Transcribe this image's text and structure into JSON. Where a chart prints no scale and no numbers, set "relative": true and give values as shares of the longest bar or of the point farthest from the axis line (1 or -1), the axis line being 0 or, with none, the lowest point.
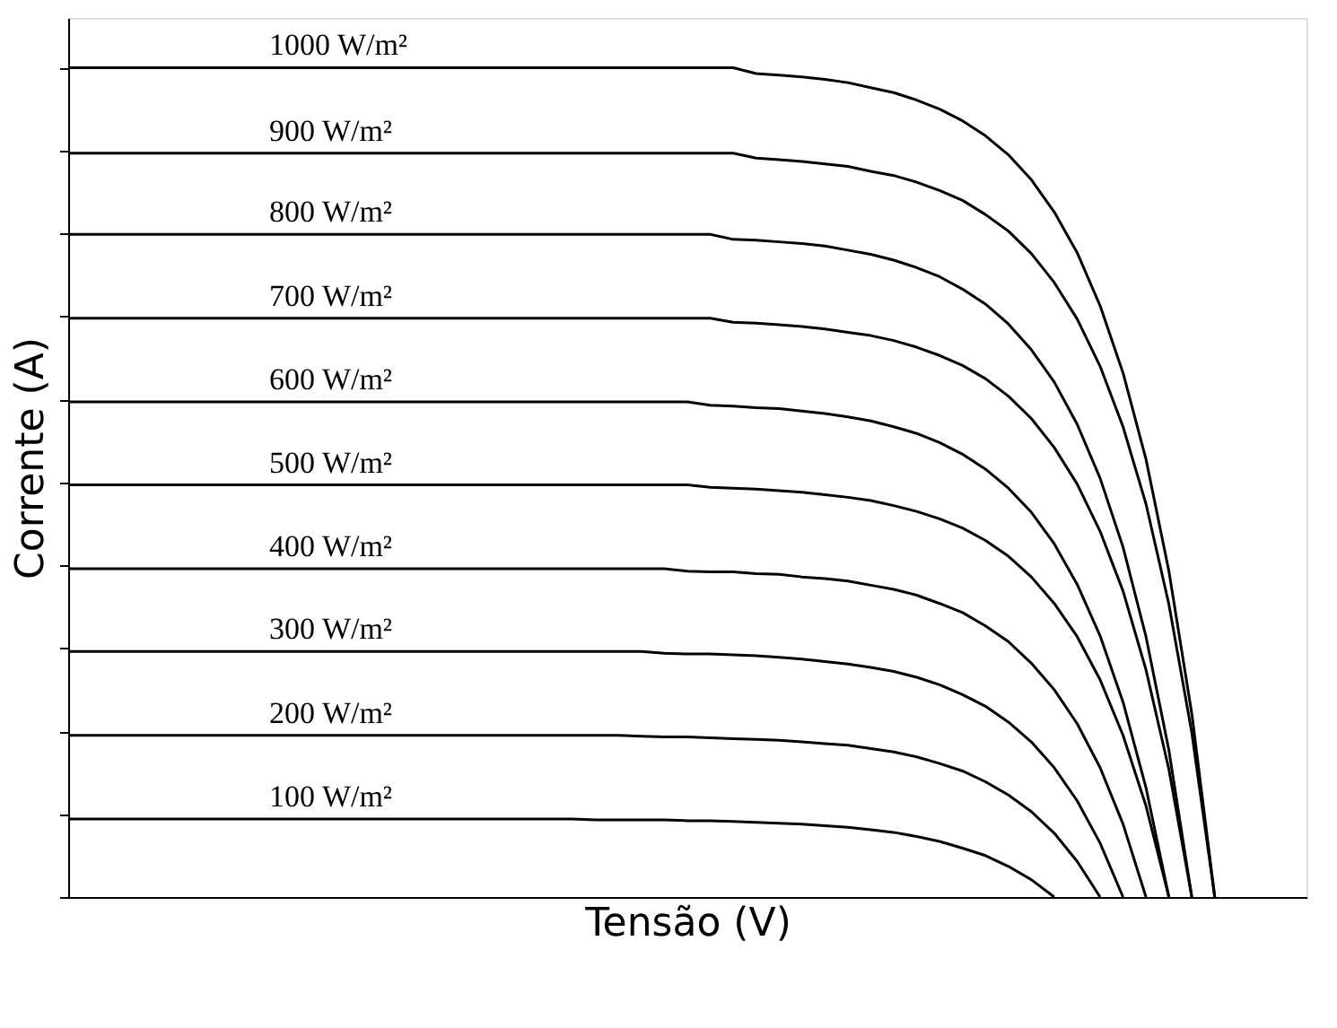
{
  "chart_data": {
    "type": "line",
    "relative": true,
    "xlabel": "Tensão (V)",
    "ylabel": "Corrente (A)",
    "tick_labels": false,
    "grid": false,
    "legend": false,
    "marker": "none",
    "line_style": "solid",
    "categories": [
      null,
      null,
      null,
      null,
      null,
      null,
      null,
      null,
      null,
      null,
      null,
      null,
      null,
      null,
      null,
      null,
      null,
      null,
      null,
      null,
      null,
      null,
      null,
      null,
      null,
      null,
      null,
      null,
      null,
      null,
      null,
      null,
      null,
      null,
      null,
      null,
      null,
      null,
      null,
      null,
      null,
      null,
      null,
      null,
      null,
      null,
      null,
      null,
      null,
      null,
      null,
      null,
      null,
      null,
      null
    ],
    "series": [
      {
        "name": "100 W/m²",
        "color": "#000000",
        "values": [
          0.094,
          0.094,
          0.094,
          0.094,
          0.094,
          0.094,
          0.094,
          0.094,
          0.094,
          0.094,
          0.094,
          0.094,
          0.094,
          0.094,
          0.094,
          0.094,
          0.094,
          0.094,
          0.094,
          0.094,
          0.094,
          0.094,
          0.094,
          0.093,
          0.093,
          0.093,
          0.093,
          0.092,
          0.092,
          0.091,
          0.09,
          0.089,
          0.088,
          0.086,
          0.084,
          0.081,
          0.078,
          0.073,
          0.067,
          0.059,
          0.05,
          0.037,
          0.021,
          0,
          null,
          null,
          null,
          null,
          null,
          null,
          null,
          null,
          null,
          null,
          null
        ]
      },
      {
        "name": "200 W/m²",
        "color": "#000000",
        "values": [
          0.195,
          0.195,
          0.195,
          0.195,
          0.195,
          0.195,
          0.195,
          0.195,
          0.195,
          0.195,
          0.195,
          0.195,
          0.195,
          0.195,
          0.195,
          0.195,
          0.195,
          0.195,
          0.195,
          0.195,
          0.195,
          0.195,
          0.195,
          0.195,
          0.195,
          0.194,
          0.193,
          0.193,
          0.192,
          0.191,
          0.19,
          0.189,
          0.187,
          0.185,
          0.183,
          0.179,
          0.175,
          0.169,
          0.161,
          0.152,
          0.139,
          0.123,
          0.103,
          0.077,
          0.043,
          0,
          null,
          null,
          null,
          null,
          null,
          null,
          null,
          null,
          null
        ]
      },
      {
        "name": "300 W/m²",
        "color": "#000000",
        "values": [
          0.296,
          0.296,
          0.296,
          0.296,
          0.296,
          0.296,
          0.296,
          0.296,
          0.296,
          0.296,
          0.296,
          0.296,
          0.296,
          0.296,
          0.296,
          0.296,
          0.296,
          0.296,
          0.296,
          0.296,
          0.296,
          0.296,
          0.296,
          0.296,
          0.296,
          0.296,
          0.294,
          0.293,
          0.293,
          0.292,
          0.291,
          0.289,
          0.287,
          0.284,
          0.281,
          0.277,
          0.272,
          0.265,
          0.256,
          0.244,
          0.23,
          0.211,
          0.187,
          0.156,
          0.116,
          0.065,
          0,
          null,
          null,
          null,
          null,
          null,
          null,
          null,
          null
        ]
      },
      {
        "name": "400 W/m²",
        "color": "#000000",
        "values": [
          0.396,
          0.396,
          0.396,
          0.396,
          0.396,
          0.396,
          0.396,
          0.396,
          0.396,
          0.396,
          0.396,
          0.396,
          0.396,
          0.396,
          0.396,
          0.396,
          0.396,
          0.396,
          0.396,
          0.396,
          0.396,
          0.396,
          0.396,
          0.396,
          0.396,
          0.396,
          0.396,
          0.393,
          0.392,
          0.392,
          0.39,
          0.389,
          0.386,
          0.384,
          0.381,
          0.376,
          0.371,
          0.364,
          0.354,
          0.343,
          0.327,
          0.308,
          0.282,
          0.25,
          0.209,
          0.156,
          0.088,
          0,
          null,
          null,
          null,
          null,
          null,
          null,
          null
        ]
      },
      {
        "name": "500 W/m²",
        "color": "#000000",
        "values": [
          0.497,
          0.497,
          0.497,
          0.497,
          0.497,
          0.497,
          0.497,
          0.497,
          0.497,
          0.497,
          0.497,
          0.497,
          0.497,
          0.497,
          0.497,
          0.497,
          0.497,
          0.497,
          0.497,
          0.497,
          0.497,
          0.497,
          0.497,
          0.497,
          0.497,
          0.497,
          0.497,
          0.497,
          0.494,
          0.493,
          0.492,
          0.49,
          0.488,
          0.485,
          0.482,
          0.478,
          0.472,
          0.465,
          0.456,
          0.445,
          0.43,
          0.411,
          0.386,
          0.354,
          0.314,
          0.262,
          0.195,
          0.11,
          0,
          null,
          null,
          null,
          null,
          null,
          null
        ]
      },
      {
        "name": "600 W/m²",
        "color": "#000000",
        "values": [
          0.597,
          0.597,
          0.597,
          0.597,
          0.597,
          0.597,
          0.597,
          0.597,
          0.597,
          0.597,
          0.597,
          0.597,
          0.597,
          0.597,
          0.597,
          0.597,
          0.597,
          0.597,
          0.597,
          0.597,
          0.597,
          0.597,
          0.597,
          0.597,
          0.597,
          0.597,
          0.597,
          0.597,
          0.593,
          0.592,
          0.59,
          0.589,
          0.586,
          0.583,
          0.579,
          0.574,
          0.567,
          0.559,
          0.548,
          0.534,
          0.516,
          0.493,
          0.464,
          0.426,
          0.377,
          0.315,
          0.235,
          0.132,
          0,
          null,
          null,
          null,
          null,
          null,
          null
        ]
      },
      {
        "name": "700 W/m²",
        "color": "#000000",
        "values": [
          0.698,
          0.698,
          0.698,
          0.698,
          0.698,
          0.698,
          0.698,
          0.698,
          0.698,
          0.698,
          0.698,
          0.698,
          0.698,
          0.698,
          0.698,
          0.698,
          0.698,
          0.698,
          0.698,
          0.698,
          0.698,
          0.698,
          0.698,
          0.698,
          0.698,
          0.698,
          0.698,
          0.698,
          0.698,
          0.693,
          0.692,
          0.69,
          0.688,
          0.685,
          0.681,
          0.677,
          0.671,
          0.663,
          0.653,
          0.641,
          0.625,
          0.604,
          0.577,
          0.542,
          0.498,
          0.441,
          0.369,
          0.274,
          0.154,
          0,
          null,
          null,
          null,
          null,
          null
        ]
      },
      {
        "name": "800 W/m²",
        "color": "#000000",
        "values": [
          0.799,
          0.799,
          0.799,
          0.799,
          0.799,
          0.799,
          0.799,
          0.799,
          0.799,
          0.799,
          0.799,
          0.799,
          0.799,
          0.799,
          0.799,
          0.799,
          0.799,
          0.799,
          0.799,
          0.799,
          0.799,
          0.799,
          0.799,
          0.799,
          0.799,
          0.799,
          0.799,
          0.799,
          0.799,
          0.793,
          0.792,
          0.79,
          0.788,
          0.785,
          0.78,
          0.775,
          0.768,
          0.759,
          0.748,
          0.733,
          0.715,
          0.691,
          0.66,
          0.621,
          0.57,
          0.505,
          0.422,
          0.314,
          0.177,
          0,
          null,
          null,
          null,
          null,
          null
        ]
      },
      {
        "name": "900 W/m²",
        "color": "#000000",
        "values": [
          0.897,
          0.897,
          0.897,
          0.897,
          0.897,
          0.897,
          0.897,
          0.897,
          0.897,
          0.897,
          0.897,
          0.897,
          0.897,
          0.897,
          0.897,
          0.897,
          0.897,
          0.897,
          0.897,
          0.897,
          0.897,
          0.897,
          0.897,
          0.897,
          0.897,
          0.897,
          0.897,
          0.897,
          0.897,
          0.897,
          0.891,
          0.889,
          0.887,
          0.884,
          0.881,
          0.875,
          0.87,
          0.862,
          0.852,
          0.84,
          0.823,
          0.803,
          0.776,
          0.741,
          0.697,
          0.64,
          0.567,
          0.474,
          0.353,
          0.198,
          0,
          null,
          null,
          null,
          null
        ]
      },
      {
        "name": "1000 W/m²",
        "color": "#000000",
        "values": [
          1,
          1,
          1,
          1,
          1,
          1,
          1,
          1,
          1,
          1,
          1,
          1,
          1,
          1,
          1,
          1,
          1,
          1,
          1,
          1,
          1,
          1,
          1,
          1,
          1,
          1,
          1,
          1,
          1,
          1,
          0.993,
          0.991,
          0.989,
          0.986,
          0.982,
          0.976,
          0.97,
          0.961,
          0.95,
          0.936,
          0.918,
          0.895,
          0.865,
          0.826,
          0.777,
          0.713,
          0.632,
          0.528,
          0.393,
          0.221,
          0,
          null,
          null,
          null,
          null
        ]
      }
    ]
  }
}
